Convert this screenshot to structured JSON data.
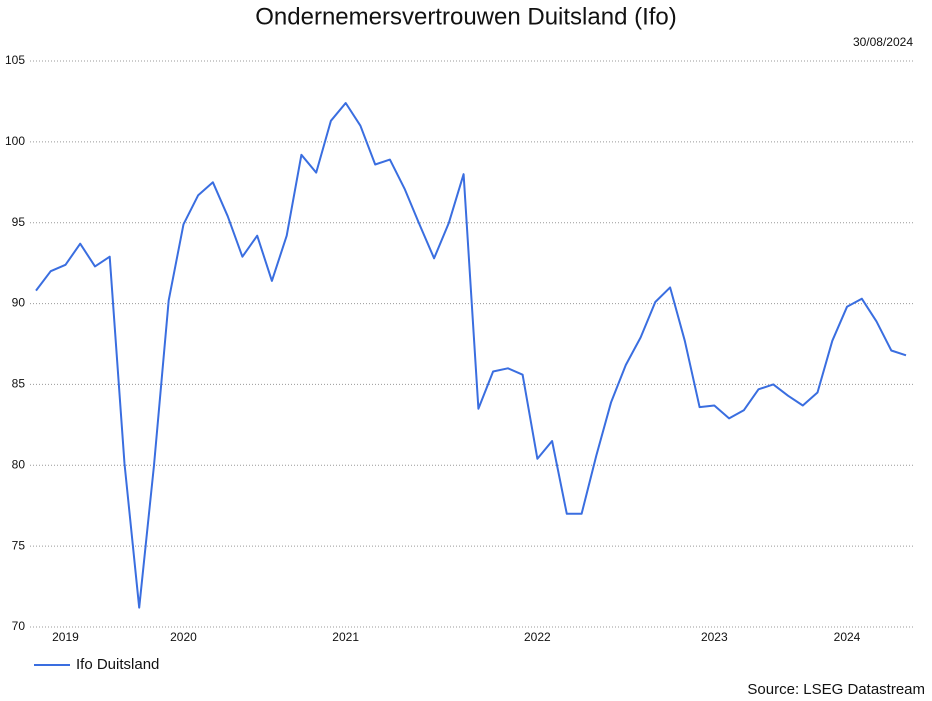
{
  "chart_data": {
    "type": "line",
    "title": "Ondernemersvertrouwen Duitsland (Ifo)",
    "date": "30/08/2024",
    "source": "Source: LSEG Datastream",
    "categories": [
      null,
      null,
      "2019",
      null,
      null,
      null,
      null,
      null,
      null,
      null,
      "2020",
      null,
      null,
      null,
      null,
      null,
      null,
      null,
      null,
      null,
      null,
      "2021",
      null,
      null,
      null,
      null,
      null,
      null,
      null,
      null,
      null,
      null,
      null,
      null,
      "2022",
      null,
      null,
      null,
      null,
      null,
      null,
      null,
      null,
      null,
      null,
      null,
      "2023",
      null,
      null,
      null,
      null,
      null,
      null,
      null,
      null,
      "2024",
      null,
      null,
      null,
      null
    ],
    "series": [
      {
        "name": "Ifo Duitsland",
        "color": "#3a6ee0",
        "values": [
          90.8,
          92.0,
          92.4,
          93.7,
          92.3,
          92.9,
          80.1,
          71.2,
          80.0,
          90.2,
          94.9,
          96.7,
          97.5,
          95.4,
          92.9,
          94.2,
          91.4,
          94.2,
          99.2,
          98.1,
          101.3,
          102.4,
          101.0,
          98.6,
          98.9,
          97.1,
          94.9,
          92.8,
          95.0,
          98.0,
          83.5,
          85.8,
          86.0,
          85.6,
          80.4,
          81.5,
          77.0,
          77.0,
          80.6,
          83.9,
          86.2,
          87.9,
          90.1,
          91.0,
          87.7,
          83.6,
          83.7,
          82.9,
          83.4,
          84.7,
          85.0,
          84.3,
          83.7,
          84.5,
          87.7,
          89.8,
          90.3,
          88.9,
          87.1,
          86.8
        ]
      }
    ],
    "ylim": [
      70,
      105
    ],
    "yticks": [
      70,
      75,
      80,
      85,
      90,
      95,
      100,
      105
    ],
    "grid": true
  }
}
